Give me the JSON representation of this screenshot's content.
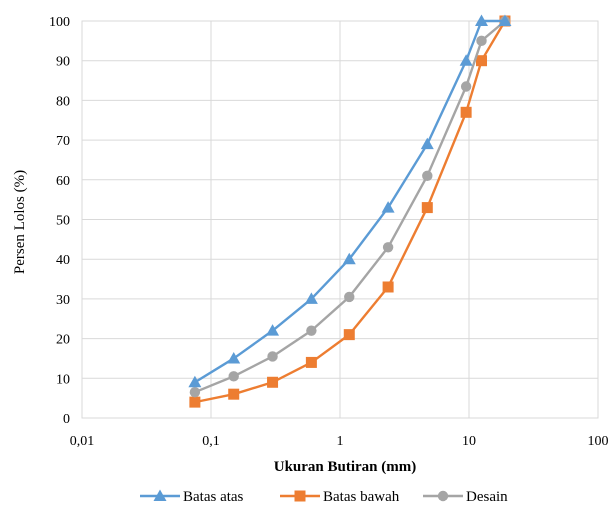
{
  "chart_data": {
    "type": "line",
    "xlabel": "Ukuran Butiran (mm)",
    "ylabel": "Persen Lolos (%)",
    "xscale": "log",
    "xlim": [
      0.01,
      100
    ],
    "ylim": [
      0,
      100
    ],
    "grid": true,
    "legend_position": "bottom",
    "x_tick_labels": [
      "0,01",
      "0,1",
      "1",
      "10",
      "100"
    ],
    "y_tick_labels": [
      "0",
      "10",
      "20",
      "30",
      "40",
      "50",
      "60",
      "70",
      "80",
      "90",
      "100"
    ],
    "series": [
      {
        "name": "Batas atas",
        "color": "#5B9BD5",
        "marker": "triangle",
        "points": [
          [
            0.075,
            9
          ],
          [
            0.15,
            15
          ],
          [
            0.3,
            22
          ],
          [
            0.6,
            30
          ],
          [
            1.18,
            40
          ],
          [
            2.36,
            53
          ],
          [
            4.75,
            69
          ],
          [
            9.5,
            90
          ],
          [
            12.5,
            100
          ],
          [
            19,
            100
          ]
        ]
      },
      {
        "name": "Batas bawah",
        "color": "#ED7D31",
        "marker": "square",
        "points": [
          [
            0.075,
            4
          ],
          [
            0.15,
            6
          ],
          [
            0.3,
            9
          ],
          [
            0.6,
            14
          ],
          [
            1.18,
            21
          ],
          [
            2.36,
            33
          ],
          [
            4.75,
            53
          ],
          [
            9.5,
            77
          ],
          [
            12.5,
            90
          ],
          [
            19,
            100
          ]
        ]
      },
      {
        "name": "Desain",
        "color": "#A5A5A5",
        "marker": "circle",
        "points": [
          [
            0.075,
            6.5
          ],
          [
            0.15,
            10.5
          ],
          [
            0.3,
            15.5
          ],
          [
            0.6,
            22
          ],
          [
            1.18,
            30.5
          ],
          [
            2.36,
            43
          ],
          [
            4.75,
            61
          ],
          [
            9.5,
            83.5
          ],
          [
            12.5,
            95
          ],
          [
            19,
            100
          ]
        ]
      }
    ]
  }
}
